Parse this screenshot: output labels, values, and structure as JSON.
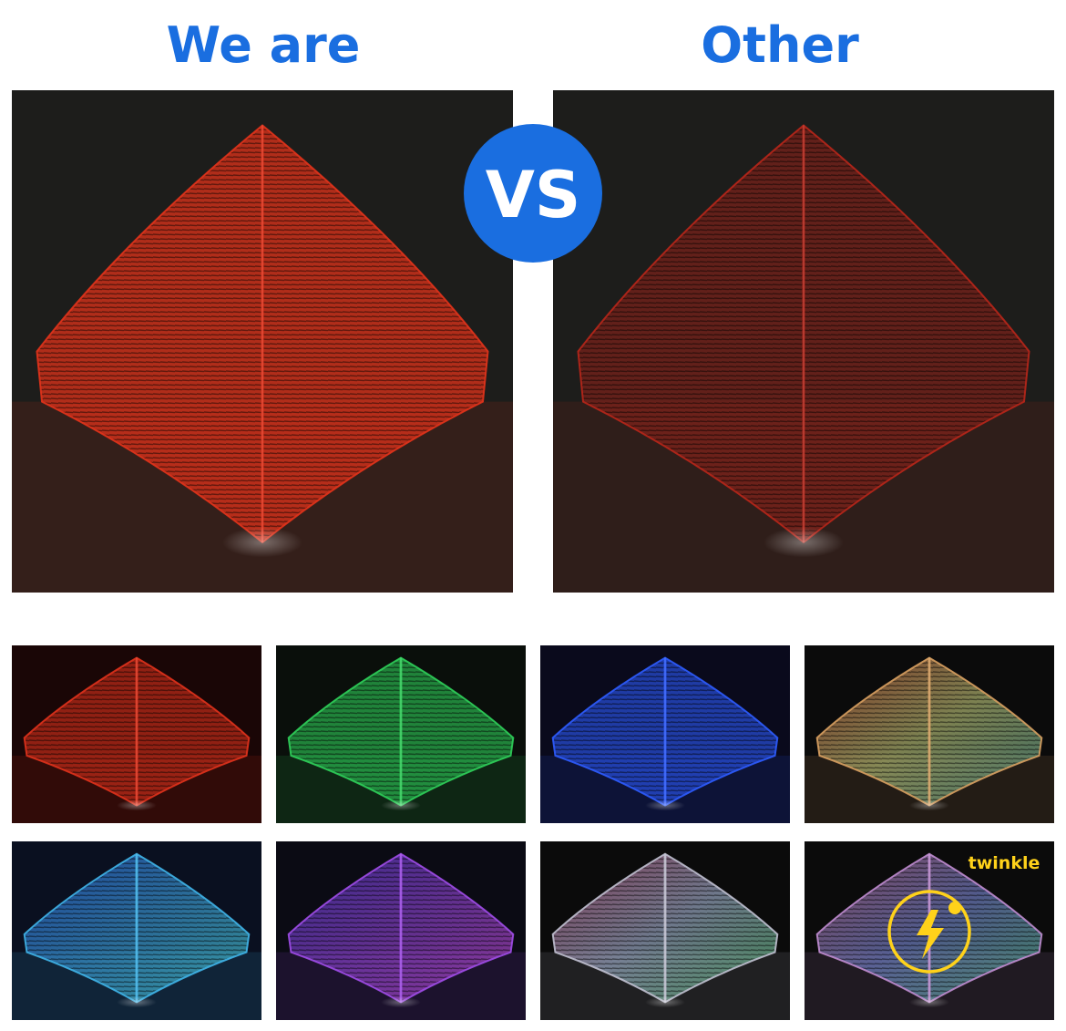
{
  "header": {
    "left": "We are",
    "right": "Other"
  },
  "badge": "VS",
  "tag": "twinkle"
}
